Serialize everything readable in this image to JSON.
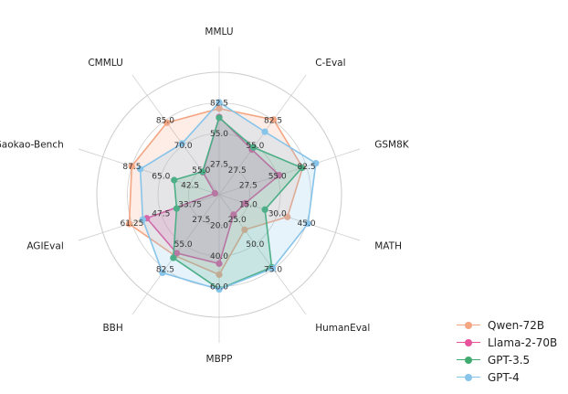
{
  "chart_data": {
    "type": "radar",
    "title": "",
    "axes": [
      "MMLU",
      "C-Eval",
      "GSM8K",
      "MATH",
      "HumanEval",
      "MBPP",
      "BBH",
      "AGIEval",
      "Gaokao-Bench",
      "CMMLU"
    ],
    "tick_labels": [
      [
        "27.5",
        "55.0",
        "82.5"
      ],
      [
        "27.5",
        "55.0",
        "82.5"
      ],
      [
        "27.5",
        "55.0",
        "82.5"
      ],
      [
        "15.0",
        "30.0",
        "45.0"
      ],
      [
        "25.0",
        "50.0",
        "75.0"
      ],
      [
        "20.0",
        "40.0",
        "60.0"
      ],
      [
        "27.5",
        "55.0",
        "82.5"
      ],
      [
        "33.75",
        "47.5",
        "61.25"
      ],
      [
        "42.5",
        "65.0",
        "87.5"
      ],
      [
        "55.0",
        "70.0",
        "85.0"
      ]
    ],
    "grid": true,
    "legend_position": "bottom-right",
    "series": [
      {
        "name": "Qwen-72B",
        "color": "#f4a582",
        "values": [
          77.4,
          83.3,
          78.9,
          35.2,
          35.4,
          52.2,
          67.7,
          62.5,
          87.6,
          83.6
        ]
      },
      {
        "name": "Llama-2-70B",
        "color": "#e7529b",
        "values": [
          69.8,
          50.1,
          56.8,
          13.5,
          20.1,
          45.0,
          64.9,
          54.2,
          23.3,
          53.6
        ]
      },
      {
        "name": "GPT-3.5",
        "color": "#3fab6e",
        "values": [
          69.1,
          52.5,
          78.2,
          23.6,
          73.2,
          61.6,
          70.1,
          40.1,
          54.8,
          53.9
        ]
      },
      {
        "name": "GPT-4",
        "color": "#87c4ea",
        "values": [
          83.0,
          69.9,
          91.4,
          45.8,
          74.4,
          61.9,
          86.7,
          56.1,
          81.0,
          71.0
        ]
      }
    ]
  }
}
